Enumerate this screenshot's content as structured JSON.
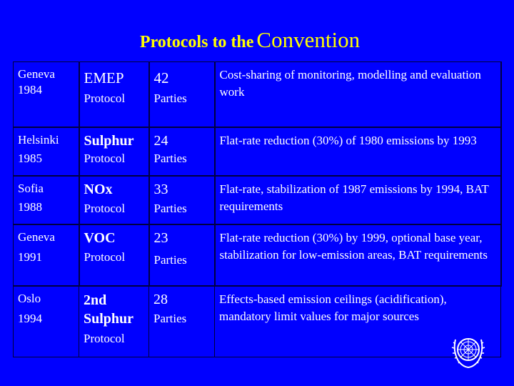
{
  "title": {
    "part1": "Protocols to the",
    "part2": "Convention"
  },
  "rows": [
    {
      "place": "Geneva",
      "year": "1984",
      "name": "EMEP",
      "kind": "Protocol",
      "num": "42",
      "parties": "Parties",
      "desc": "Cost-sharing of monitoring, modelling and evaluation work"
    },
    {
      "place": "Helsinki",
      "year": "1985",
      "name": "Sulphur",
      "kind": "Protocol",
      "num": "24",
      "parties": "Parties",
      "desc": "Flat-rate reduction (30%) of 1980 emissions by 1993"
    },
    {
      "place": "Sofia",
      "year": "1988",
      "name": "NOx",
      "kind": "Protocol",
      "num": "33",
      "parties": "Parties",
      "desc": "Flat-rate, stabilization of 1987 emissions by 1994, BAT requirements"
    },
    {
      "place": "Geneva",
      "year": "1991",
      "name": "VOC",
      "kind": "Protocol",
      "num": "23",
      "parties": "Parties",
      "desc": "Flat-rate reduction (30%) by 1999, optional base year, stabilization for low-emission areas, BAT requirements"
    },
    {
      "place": "Oslo",
      "year": "1994",
      "name": "2nd Sulphur",
      "kind": "Protocol",
      "num": "28",
      "parties": "Parties",
      "desc": "Effects-based emission ceilings (acidification), mandatory limit values for major sources"
    }
  ],
  "colors": {
    "background": "#0000ff",
    "title": "#ffff00",
    "text": "#ffffff"
  },
  "emblem_icon": "un-emblem-icon"
}
